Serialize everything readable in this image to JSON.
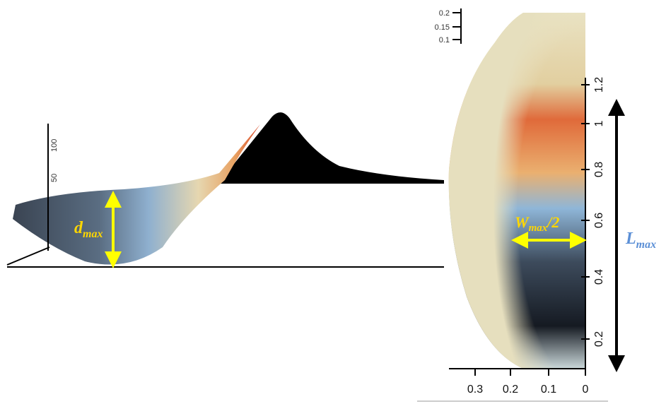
{
  "profile_view": {
    "z_axis_ticks": [
      "50",
      "100"
    ],
    "annotation": {
      "symbol": "d",
      "subscript": "max"
    }
  },
  "top_view": {
    "inset_axis_ticks": [
      "0.2",
      "0.15",
      "0.1"
    ],
    "length_axis_ticks": [
      "1.2",
      "1",
      "0.8",
      "0.6",
      "0.4",
      "0.2"
    ],
    "width_axis_ticks": [
      "0.3",
      "0.2",
      "0.1",
      "0"
    ],
    "width_annotation": {
      "symbol": "W",
      "subscript": "max",
      "suffix": "/2"
    },
    "length_annotation": {
      "symbol": "L",
      "subscript": "max"
    }
  }
}
